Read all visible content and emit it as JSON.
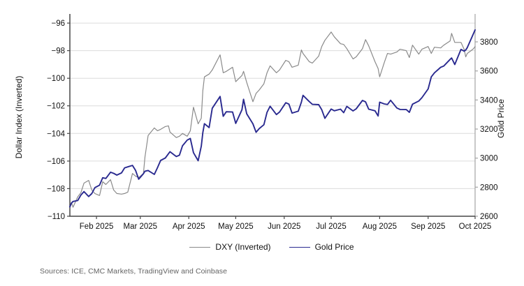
{
  "chart_data": {
    "type": "line",
    "title": "",
    "x_type": "date",
    "x_domain": [
      "2025-01-15",
      "2025-10-01"
    ],
    "x_ticks": [
      {
        "date": "2025-02-01",
        "label": "Feb 2025"
      },
      {
        "date": "2025-03-01",
        "label": "Mar 2025"
      },
      {
        "date": "2025-04-01",
        "label": "Apr 2025"
      },
      {
        "date": "2025-05-01",
        "label": "May 2025"
      },
      {
        "date": "2025-06-01",
        "label": "Jun 2025"
      },
      {
        "date": "2025-07-01",
        "label": "Jul 2025"
      },
      {
        "date": "2025-08-01",
        "label": "Aug 2025"
      },
      {
        "date": "2025-09-01",
        "label": "Sep 2025"
      },
      {
        "date": "2025-10-01",
        "label": "Oct 2025"
      }
    ],
    "left_axis": {
      "label": "Dollar Index (Inverted)",
      "range": [
        -110,
        -95.34
      ],
      "ticks": [
        -96,
        -98,
        -100,
        -102,
        -104,
        -106,
        -108,
        -110
      ],
      "tick_labels": [
        "−96",
        "−98",
        "−100",
        "−102",
        "−104",
        "−106",
        "−108",
        "−110"
      ],
      "grid": true
    },
    "right_axis": {
      "label": "Gold Price",
      "range": [
        2600,
        3992
      ],
      "ticks": [
        3800,
        3600,
        3400,
        3200,
        3000,
        2800,
        2600
      ],
      "tick_labels": [
        "3800",
        "3600",
        "3400",
        "3200",
        "3000",
        "2800",
        "2600"
      ],
      "grid": false
    },
    "legend_position": "bottom-center",
    "series": [
      {
        "name": "DXY (Inverted)",
        "axis": "left",
        "color": "#8a8a8a",
        "stroke_width": 1.2
      },
      {
        "name": "Gold Price",
        "axis": "right",
        "color": "#29298f",
        "stroke_width": 1.9
      }
    ],
    "rows_format": [
      "date",
      "dxy_inverted",
      "gold_usd"
    ],
    "rows": [
      [
        "2025-01-15",
        -109.3,
        2665
      ],
      [
        "2025-01-16",
        -109.0,
        2690
      ],
      [
        "2025-01-17",
        -109.35,
        2702
      ],
      [
        "2025-01-20",
        -108.6,
        2708
      ],
      [
        "2025-01-22",
        -108.3,
        2745
      ],
      [
        "2025-01-24",
        -107.6,
        2770
      ],
      [
        "2025-01-27",
        -107.4,
        2736
      ],
      [
        "2025-01-29",
        -108.1,
        2756
      ],
      [
        "2025-01-31",
        -108.35,
        2797
      ],
      [
        "2025-02-03",
        -108.5,
        2814
      ],
      [
        "2025-02-05",
        -107.5,
        2865
      ],
      [
        "2025-02-07",
        -107.7,
        2860
      ],
      [
        "2025-02-10",
        -107.35,
        2903
      ],
      [
        "2025-02-12",
        -108.1,
        2895
      ],
      [
        "2025-02-14",
        -108.35,
        2883
      ],
      [
        "2025-02-17",
        -108.4,
        2898
      ],
      [
        "2025-02-19",
        -108.35,
        2933
      ],
      [
        "2025-02-21",
        -108.25,
        2940
      ],
      [
        "2025-02-24",
        -106.9,
        2950
      ],
      [
        "2025-02-26",
        -107.1,
        2915
      ],
      [
        "2025-02-28",
        -107.2,
        2855
      ],
      [
        "2025-03-03",
        -106.9,
        2893
      ],
      [
        "2025-03-04",
        -105.7,
        2910
      ],
      [
        "2025-03-06",
        -104.15,
        2915
      ],
      [
        "2025-03-10",
        -103.6,
        2888
      ],
      [
        "2025-03-12",
        -103.8,
        2934
      ],
      [
        "2025-03-14",
        -103.7,
        2984
      ],
      [
        "2025-03-17",
        -103.5,
        3001
      ],
      [
        "2025-03-19",
        -103.45,
        3030
      ],
      [
        "2025-03-20",
        -103.9,
        3044
      ],
      [
        "2025-03-24",
        -104.3,
        3011
      ],
      [
        "2025-03-26",
        -104.2,
        3020
      ],
      [
        "2025-03-28",
        -104.0,
        3085
      ],
      [
        "2025-03-31",
        -104.2,
        3124
      ],
      [
        "2025-04-02",
        -103.8,
        3135
      ],
      [
        "2025-04-04",
        -102.1,
        3038
      ],
      [
        "2025-04-07",
        -103.3,
        2982
      ],
      [
        "2025-04-09",
        -102.9,
        3082
      ],
      [
        "2025-04-10",
        -100.9,
        3175
      ],
      [
        "2025-04-11",
        -99.9,
        3237
      ],
      [
        "2025-04-14",
        -99.7,
        3210
      ],
      [
        "2025-04-16",
        -99.4,
        3343
      ],
      [
        "2025-04-21",
        -98.3,
        3424
      ],
      [
        "2025-04-23",
        -99.6,
        3288
      ],
      [
        "2025-04-25",
        -99.5,
        3319
      ],
      [
        "2025-04-29",
        -99.2,
        3317
      ],
      [
        "2025-05-01",
        -100.25,
        3239
      ],
      [
        "2025-05-05",
        -99.8,
        3333
      ],
      [
        "2025-05-06",
        -99.5,
        3405
      ],
      [
        "2025-05-08",
        -100.3,
        3305
      ],
      [
        "2025-05-12",
        -101.7,
        3236
      ],
      [
        "2025-05-14",
        -101.1,
        3178
      ],
      [
        "2025-05-16",
        -100.85,
        3203
      ],
      [
        "2025-05-19",
        -100.4,
        3230
      ],
      [
        "2025-05-21",
        -99.6,
        3315
      ],
      [
        "2025-05-23",
        -99.1,
        3357
      ],
      [
        "2025-05-27",
        -99.6,
        3300
      ],
      [
        "2025-05-29",
        -99.4,
        3317
      ],
      [
        "2025-06-02",
        -98.7,
        3381
      ],
      [
        "2025-06-04",
        -98.8,
        3372
      ],
      [
        "2025-06-06",
        -99.2,
        3310
      ],
      [
        "2025-06-10",
        -99.05,
        3323
      ],
      [
        "2025-06-12",
        -97.95,
        3386
      ],
      [
        "2025-06-13",
        -98.2,
        3432
      ],
      [
        "2025-06-17",
        -98.8,
        3389
      ],
      [
        "2025-06-19",
        -98.9,
        3370
      ],
      [
        "2025-06-23",
        -98.4,
        3368
      ],
      [
        "2025-06-25",
        -97.7,
        3333
      ],
      [
        "2025-06-27",
        -97.25,
        3274
      ],
      [
        "2025-07-01",
        -96.65,
        3338
      ],
      [
        "2025-07-03",
        -97.0,
        3326
      ],
      [
        "2025-07-07",
        -97.5,
        3337
      ],
      [
        "2025-07-09",
        -97.55,
        3313
      ],
      [
        "2025-07-11",
        -97.85,
        3356
      ],
      [
        "2025-07-15",
        -98.6,
        3325
      ],
      [
        "2025-07-17",
        -98.45,
        3339
      ],
      [
        "2025-07-21",
        -97.85,
        3397
      ],
      [
        "2025-07-23",
        -97.2,
        3387
      ],
      [
        "2025-07-25",
        -97.65,
        3337
      ],
      [
        "2025-07-29",
        -98.8,
        3326
      ],
      [
        "2025-07-31",
        -99.3,
        3290
      ],
      [
        "2025-08-01",
        -99.9,
        3385
      ],
      [
        "2025-08-04",
        -98.85,
        3373
      ],
      [
        "2025-08-06",
        -98.2,
        3369
      ],
      [
        "2025-08-08",
        -98.25,
        3398
      ],
      [
        "2025-08-12",
        -98.1,
        3345
      ],
      [
        "2025-08-14",
        -97.9,
        3335
      ],
      [
        "2025-08-18",
        -98.0,
        3334
      ],
      [
        "2025-08-20",
        -98.5,
        3315
      ],
      [
        "2025-08-22",
        -97.6,
        3371
      ],
      [
        "2025-08-26",
        -98.25,
        3393
      ],
      [
        "2025-08-28",
        -97.9,
        3416
      ],
      [
        "2025-09-01",
        -97.7,
        3476
      ],
      [
        "2025-09-03",
        -98.2,
        3559
      ],
      [
        "2025-09-05",
        -97.75,
        3587
      ],
      [
        "2025-09-09",
        -97.8,
        3625
      ],
      [
        "2025-09-11",
        -97.6,
        3634
      ],
      [
        "2025-09-15",
        -97.3,
        3679
      ],
      [
        "2025-09-16",
        -96.75,
        3689
      ],
      [
        "2025-09-18",
        -97.4,
        3644
      ],
      [
        "2025-09-22",
        -97.4,
        3748
      ],
      [
        "2025-09-24",
        -97.9,
        3736
      ],
      [
        "2025-09-25",
        -98.45,
        3744
      ],
      [
        "2025-09-26",
        -98.2,
        3760
      ],
      [
        "2025-09-29",
        -97.95,
        3833
      ],
      [
        "2025-09-30",
        -97.85,
        3858
      ],
      [
        "2025-10-01",
        -97.7,
        3882
      ]
    ],
    "sources_note": "Sources: ICE, CMC Markets, TradingView and Coinbase",
    "colors": {
      "grid": "#dcdcdc",
      "spine_dark": "#474747",
      "spine_right": "#a3a3a3",
      "text": "#111111",
      "sources_text": "#636363"
    }
  }
}
